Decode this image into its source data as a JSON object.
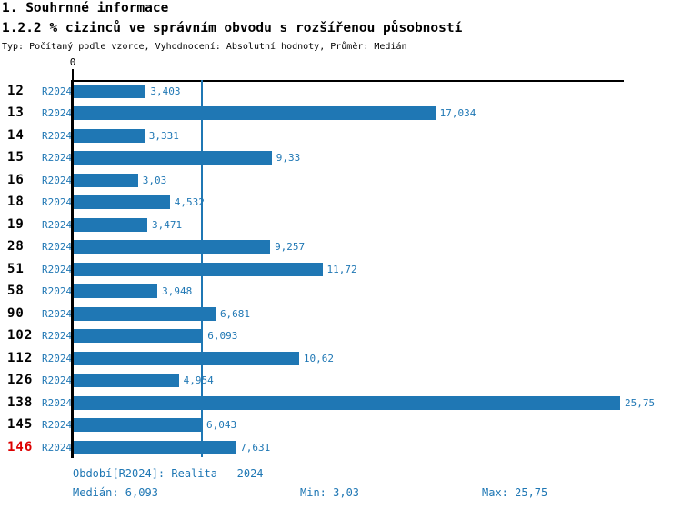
{
  "header": {
    "title1": "1. Souhrnné informace",
    "title2": "1.2.2 % cizinců ve správním obvodu s rozšířenou působností",
    "subtitle": "Typ: Počítaný podle vzorce, Vyhodnocení: Absolutní hodnoty, Průměr: Medián"
  },
  "chart_data": {
    "type": "bar",
    "orientation": "horizontal",
    "axis_zero_label": "0",
    "series_label": "R2024",
    "categories": [
      "12",
      "13",
      "14",
      "15",
      "16",
      "18",
      "19",
      "28",
      "51",
      "58",
      "90",
      "102",
      "112",
      "126",
      "138",
      "145",
      "146"
    ],
    "values": [
      3.403,
      17.034,
      3.331,
      9.33,
      3.03,
      4.532,
      3.471,
      9.257,
      11.72,
      3.948,
      6.681,
      6.093,
      10.62,
      4.954,
      25.75,
      6.043,
      7.631
    ],
    "value_labels": [
      "3,403",
      "17,034",
      "3,331",
      "9,33",
      "3,03",
      "4,532",
      "3,471",
      "9,257",
      "11,72",
      "3,948",
      "6,681",
      "6,093",
      "10,62",
      "4,954",
      "25,75",
      "6,043",
      "7,631"
    ],
    "highlighted_category": "146",
    "median": 6.093,
    "xlim": [
      0,
      25.92
    ],
    "grid": false,
    "legend": "none",
    "bar_color": "#1f77b4",
    "highlight_color": "#dd0000"
  },
  "footer": {
    "period": "Období[R2024]: Realita - 2024",
    "median": "Medián: 6,093",
    "min": "Min: 3,03",
    "max": "Max: 25,75"
  }
}
